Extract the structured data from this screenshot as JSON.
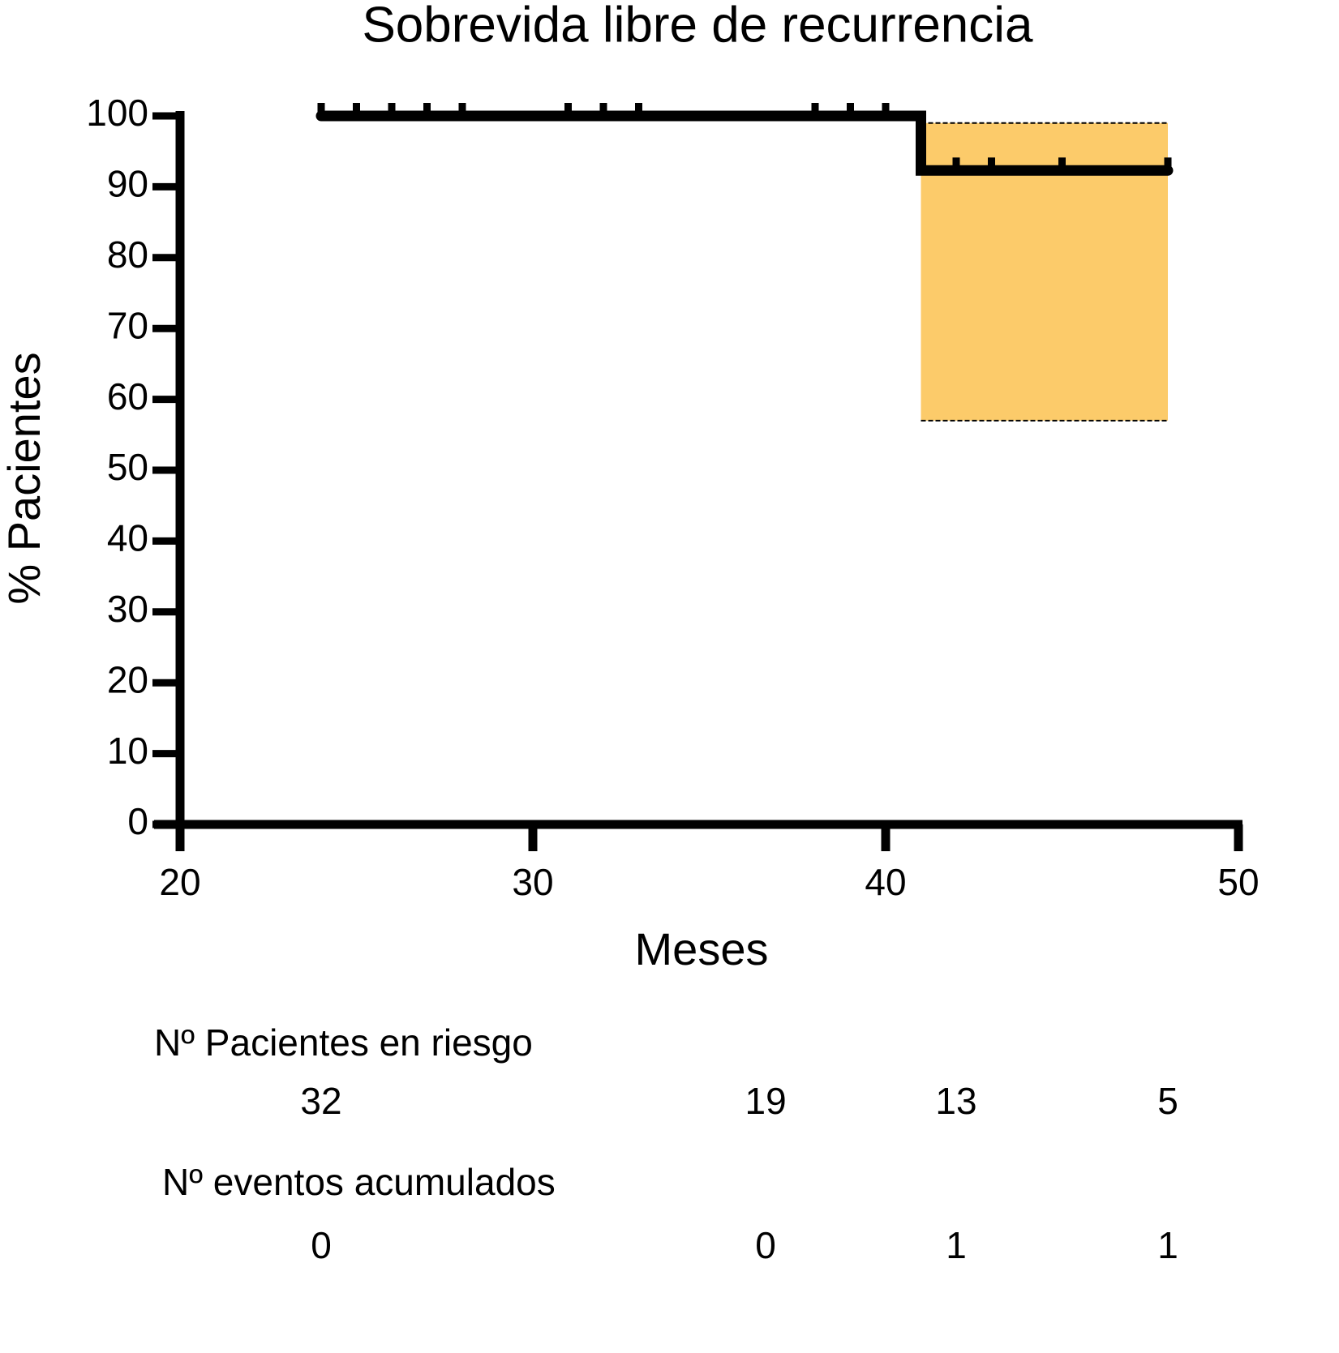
{
  "chart_data": {
    "type": "step",
    "title": "Sobrevida libre de recurrencia",
    "xlabel": "Meses",
    "ylabel": "% Pacientes",
    "xlim": [
      20,
      50
    ],
    "xticks": [
      20,
      30,
      40,
      50
    ],
    "ylim": [
      0,
      100
    ],
    "yticks": [
      0,
      10,
      20,
      30,
      40,
      50,
      60,
      70,
      80,
      90,
      100
    ],
    "series": [
      {
        "color": "#000000",
        "x": [
          24,
          41,
          48
        ],
        "values": [
          100,
          92.3,
          92.3
        ]
      }
    ],
    "censored": {
      "x": [
        24,
        25,
        26,
        27,
        28,
        31,
        32,
        33,
        38,
        39,
        40,
        42,
        43,
        45,
        48
      ],
      "values": [
        100,
        100,
        100,
        100,
        100,
        100,
        100,
        100,
        100,
        100,
        100,
        92.3,
        92.3,
        92.3,
        92.3
      ]
    },
    "ci": {
      "x": [
        41,
        48
      ],
      "upper": [
        99,
        99
      ],
      "lower": [
        57,
        57
      ],
      "color": "#fccb6a"
    },
    "risk_table": {
      "x": [
        24,
        36.6,
        42,
        48
      ],
      "rows": [
        {
          "label": "Nº Pacientes en riesgo",
          "values": [
            32,
            19,
            13,
            5
          ]
        },
        {
          "label": "Nº eventos acumulados",
          "values": [
            0,
            0,
            1,
            1
          ]
        }
      ]
    }
  }
}
